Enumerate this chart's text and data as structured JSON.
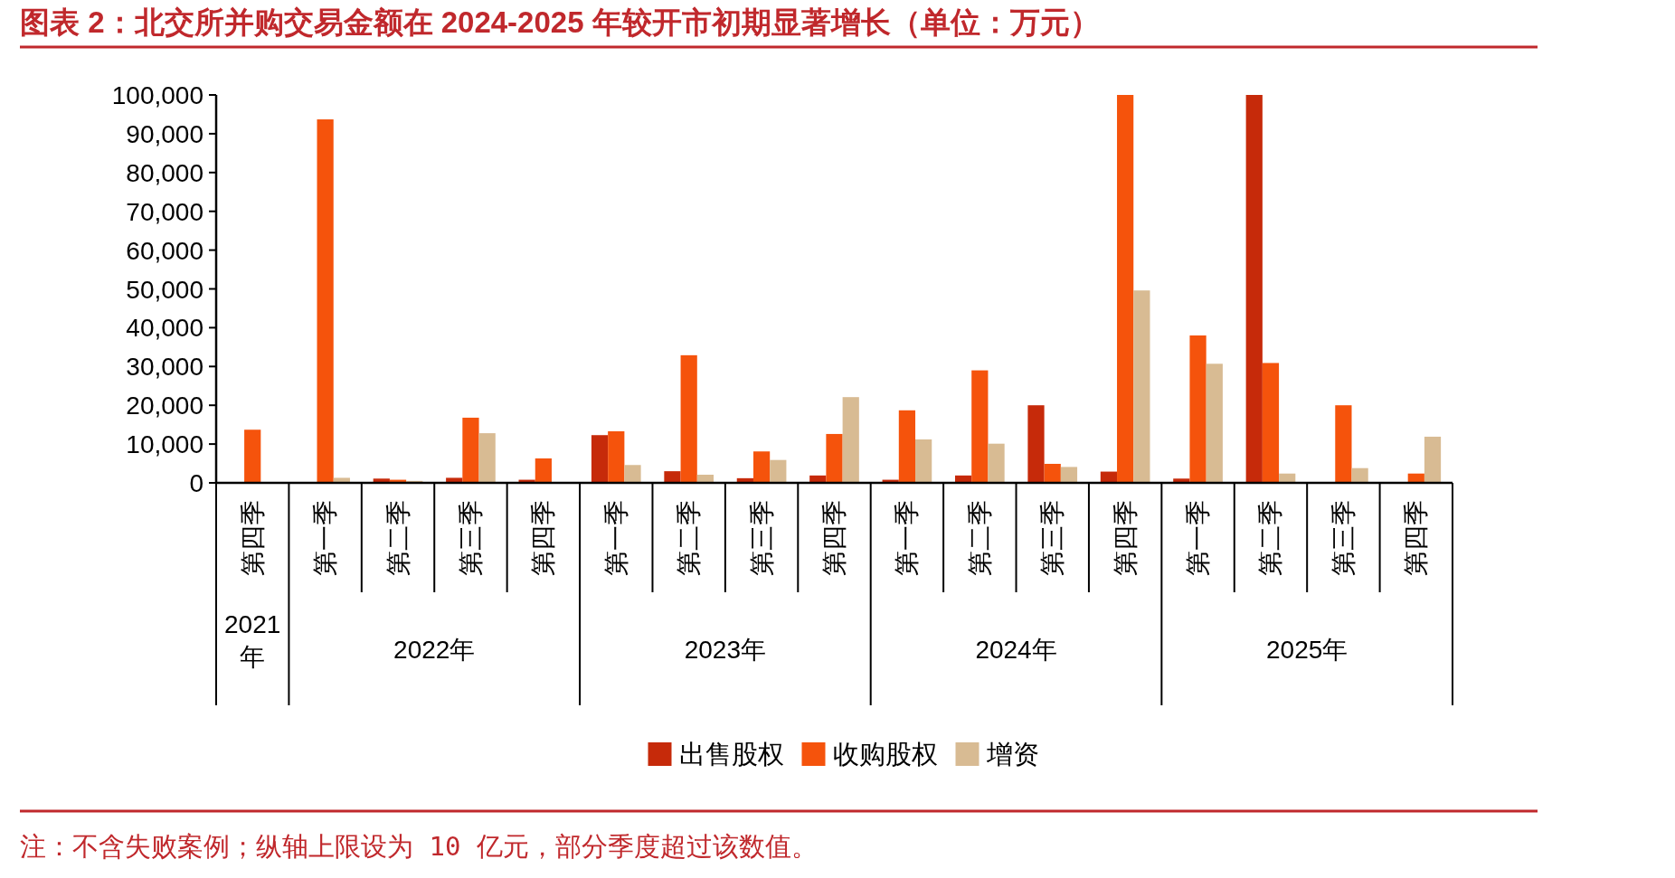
{
  "chart_data": {
    "type": "bar",
    "title": "图表 2：北交所并购交易金额在 2024-2025 年较开市初期显著增长（单位：万元）",
    "categories": [
      "第四季",
      "第一季",
      "第二季",
      "第三季",
      "第四季",
      "第一季",
      "第二季",
      "第三季",
      "第四季",
      "第一季",
      "第二季",
      "第三季",
      "第四季",
      "第一季",
      "第二季",
      "第三季",
      "第四季"
    ],
    "series": [
      {
        "name": "出售股权",
        "color": "#c62a0a",
        "values": [
          null,
          null,
          1100,
          1300,
          800,
          12300,
          3000,
          1200,
          1900,
          800,
          1900,
          20000,
          2900,
          1100,
          100000,
          null,
          null
        ]
      },
      {
        "name": "收购股权",
        "color": "#f5530c",
        "values": [
          13700,
          93700,
          800,
          16800,
          6300,
          13300,
          32900,
          8100,
          12600,
          18700,
          29000,
          4900,
          100000,
          38000,
          30900,
          20000,
          2400
        ]
      },
      {
        "name": "增资",
        "color": "#d8bb93",
        "values": [
          null,
          1300,
          500,
          12800,
          null,
          4600,
          2100,
          5900,
          22100,
          11200,
          10100,
          4100,
          49600,
          30700,
          2400,
          3800,
          11900
        ]
      }
    ],
    "ylim": [
      0,
      100000
    ],
    "yticks": [
      {
        "value": 0,
        "label": "0"
      },
      {
        "value": 10000,
        "label": "10,000"
      },
      {
        "value": 20000,
        "label": "20,000"
      },
      {
        "value": 30000,
        "label": "30,000"
      },
      {
        "value": 40000,
        "label": "40,000"
      },
      {
        "value": 50000,
        "label": "50,000"
      },
      {
        "value": 60000,
        "label": "60,000"
      },
      {
        "value": 70000,
        "label": "70,000"
      },
      {
        "value": 80000,
        "label": "80,000"
      },
      {
        "value": 90000,
        "label": "90,000"
      },
      {
        "value": 100000,
        "label": "100,000"
      }
    ],
    "grid": false,
    "legend": "bottom",
    "annotations": [
      "2021年",
      "2022年",
      "2023年",
      "2024年",
      "2025年",
      "注：不含失败案例；纵轴上限设为 10 亿元，部分季度超过该数值。"
    ]
  }
}
